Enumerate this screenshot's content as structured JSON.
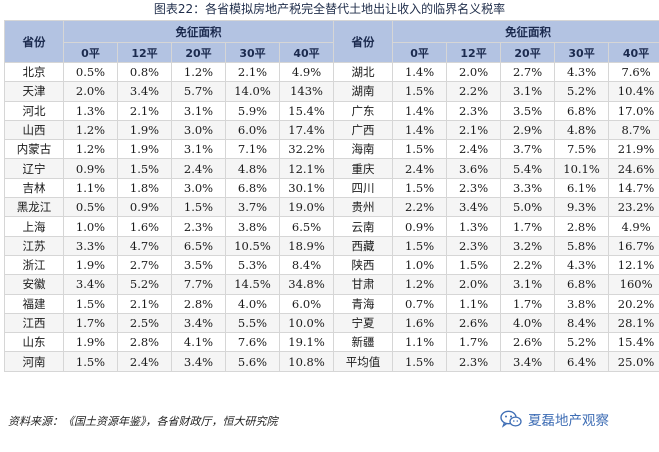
{
  "title": "图表22：各省模拟房地产税完全替代土地出让收入的临界名义税率",
  "header": {
    "province": "省份",
    "group": "免征面积",
    "areas": [
      "0平",
      "12平",
      "20平",
      "30平",
      "40平"
    ]
  },
  "left_rows": [
    {
      "name": "北京",
      "v": [
        "0.5%",
        "0.8%",
        "1.2%",
        "2.1%",
        "4.9%"
      ]
    },
    {
      "name": "天津",
      "v": [
        "2.0%",
        "3.4%",
        "5.7%",
        "14.0%",
        "143%"
      ]
    },
    {
      "name": "河北",
      "v": [
        "1.3%",
        "2.1%",
        "3.1%",
        "5.9%",
        "15.4%"
      ]
    },
    {
      "name": "山西",
      "v": [
        "1.2%",
        "1.9%",
        "3.0%",
        "6.0%",
        "17.4%"
      ]
    },
    {
      "name": "内蒙古",
      "v": [
        "1.2%",
        "1.9%",
        "3.1%",
        "7.1%",
        "32.2%"
      ]
    },
    {
      "name": "辽宁",
      "v": [
        "0.9%",
        "1.5%",
        "2.4%",
        "4.8%",
        "12.1%"
      ]
    },
    {
      "name": "吉林",
      "v": [
        "1.1%",
        "1.8%",
        "3.0%",
        "6.8%",
        "30.1%"
      ]
    },
    {
      "name": "黑龙江",
      "v": [
        "0.5%",
        "0.9%",
        "1.5%",
        "3.7%",
        "19.0%"
      ]
    },
    {
      "name": "上海",
      "v": [
        "1.0%",
        "1.6%",
        "2.3%",
        "3.8%",
        "6.5%"
      ]
    },
    {
      "name": "江苏",
      "v": [
        "3.3%",
        "4.7%",
        "6.5%",
        "10.5%",
        "18.9%"
      ]
    },
    {
      "name": "浙江",
      "v": [
        "1.9%",
        "2.7%",
        "3.5%",
        "5.3%",
        "8.4%"
      ]
    },
    {
      "name": "安徽",
      "v": [
        "3.4%",
        "5.2%",
        "7.7%",
        "14.5%",
        "34.8%"
      ]
    },
    {
      "name": "福建",
      "v": [
        "1.5%",
        "2.1%",
        "2.8%",
        "4.0%",
        "6.0%"
      ]
    },
    {
      "name": "江西",
      "v": [
        "1.7%",
        "2.5%",
        "3.4%",
        "5.5%",
        "10.0%"
      ]
    },
    {
      "name": "山东",
      "v": [
        "1.9%",
        "2.8%",
        "4.1%",
        "7.6%",
        "19.1%"
      ]
    },
    {
      "name": "河南",
      "v": [
        "1.5%",
        "2.4%",
        "3.4%",
        "5.6%",
        "10.8%"
      ]
    }
  ],
  "right_rows": [
    {
      "name": "湖北",
      "v": [
        "1.4%",
        "2.0%",
        "2.7%",
        "4.3%",
        "7.6%"
      ]
    },
    {
      "name": "湖南",
      "v": [
        "1.5%",
        "2.2%",
        "3.1%",
        "5.2%",
        "10.4%"
      ]
    },
    {
      "name": "广东",
      "v": [
        "1.4%",
        "2.3%",
        "3.5%",
        "6.8%",
        "17.0%"
      ]
    },
    {
      "name": "广西",
      "v": [
        "1.4%",
        "2.1%",
        "2.9%",
        "4.8%",
        "8.7%"
      ]
    },
    {
      "name": "海南",
      "v": [
        "1.5%",
        "2.4%",
        "3.7%",
        "7.5%",
        "21.9%"
      ]
    },
    {
      "name": "重庆",
      "v": [
        "2.4%",
        "3.6%",
        "5.4%",
        "10.1%",
        "24.6%"
      ]
    },
    {
      "name": "四川",
      "v": [
        "1.5%",
        "2.3%",
        "3.3%",
        "6.1%",
        "14.7%"
      ]
    },
    {
      "name": "贵州",
      "v": [
        "2.2%",
        "3.4%",
        "5.0%",
        "9.3%",
        "23.2%"
      ]
    },
    {
      "name": "云南",
      "v": [
        "0.9%",
        "1.3%",
        "1.7%",
        "2.8%",
        "4.9%"
      ]
    },
    {
      "name": "西藏",
      "v": [
        "1.5%",
        "2.3%",
        "3.2%",
        "5.8%",
        "16.7%"
      ]
    },
    {
      "name": "陕西",
      "v": [
        "1.0%",
        "1.5%",
        "2.2%",
        "4.3%",
        "12.1%"
      ]
    },
    {
      "name": "甘肃",
      "v": [
        "1.2%",
        "2.0%",
        "3.1%",
        "6.8%",
        "160%"
      ]
    },
    {
      "name": "青海",
      "v": [
        "0.7%",
        "1.1%",
        "1.7%",
        "3.8%",
        "20.2%"
      ]
    },
    {
      "name": "宁夏",
      "v": [
        "1.6%",
        "2.6%",
        "4.0%",
        "8.4%",
        "28.1%"
      ]
    },
    {
      "name": "新疆",
      "v": [
        "1.1%",
        "1.7%",
        "2.6%",
        "5.2%",
        "15.4%"
      ]
    },
    {
      "name": "平均值",
      "v": [
        "1.5%",
        "2.3%",
        "3.4%",
        "6.4%",
        "25.0%"
      ]
    }
  ],
  "footer": "资料来源：《国土资源年鉴》，各省财政厅，恒大研究院",
  "watermark": {
    "text": "夏磊地产观察",
    "icon": "wechat-icon",
    "color": "#3f6eb5"
  }
}
